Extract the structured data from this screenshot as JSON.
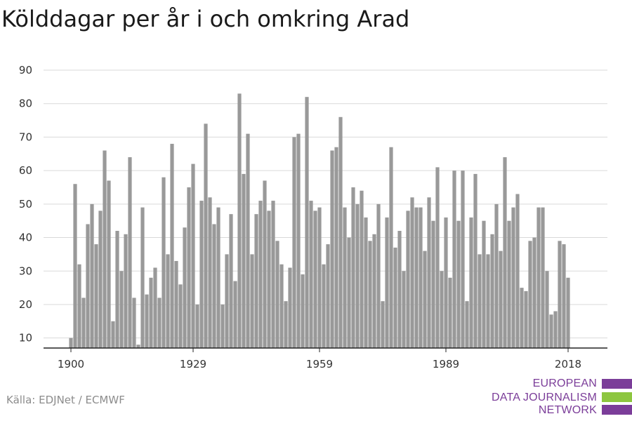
{
  "title": "Kölddagar per år i och omkring Arad",
  "source": "Källa: EDJNet / ECMWF",
  "logo": {
    "lines": [
      "EUROPEAN",
      "DATA JOURNALISM",
      "NETWORK"
    ],
    "colors": [
      "#7b3d99",
      "#8dc63f",
      "#7b3d99"
    ]
  },
  "chart_data": {
    "type": "bar",
    "title": "Kölddagar per år i och omkring Arad",
    "xlabel": "",
    "ylabel": "",
    "bar_color": "#999999",
    "grid": true,
    "ylim": [
      7,
      90
    ],
    "yticks": [
      10,
      20,
      30,
      40,
      50,
      60,
      70,
      80,
      90
    ],
    "xticks": [
      1900,
      1929,
      1959,
      1989,
      2018
    ],
    "x": [
      1900,
      1901,
      1902,
      1903,
      1904,
      1905,
      1906,
      1907,
      1908,
      1909,
      1910,
      1911,
      1912,
      1913,
      1914,
      1915,
      1916,
      1917,
      1918,
      1919,
      1920,
      1921,
      1922,
      1923,
      1924,
      1925,
      1926,
      1927,
      1928,
      1929,
      1930,
      1931,
      1932,
      1933,
      1934,
      1935,
      1936,
      1937,
      1938,
      1939,
      1940,
      1941,
      1942,
      1943,
      1944,
      1945,
      1946,
      1947,
      1948,
      1949,
      1950,
      1951,
      1952,
      1953,
      1954,
      1955,
      1956,
      1957,
      1958,
      1959,
      1960,
      1961,
      1962,
      1963,
      1964,
      1965,
      1966,
      1967,
      1968,
      1969,
      1970,
      1971,
      1972,
      1973,
      1974,
      1975,
      1976,
      1977,
      1978,
      1979,
      1980,
      1981,
      1982,
      1983,
      1984,
      1985,
      1986,
      1987,
      1988,
      1989,
      1990,
      1991,
      1992,
      1993,
      1994,
      1995,
      1996,
      1997,
      1998,
      1999,
      2000,
      2001,
      2002,
      2003,
      2004,
      2005,
      2006,
      2007,
      2008,
      2009,
      2010,
      2011,
      2012,
      2013,
      2014,
      2015,
      2016,
      2017,
      2018
    ],
    "values": [
      10,
      56,
      32,
      22,
      44,
      50,
      38,
      48,
      66,
      57,
      15,
      42,
      30,
      41,
      64,
      22,
      8,
      49,
      23,
      28,
      31,
      22,
      58,
      35,
      68,
      33,
      26,
      43,
      55,
      62,
      20,
      51,
      74,
      52,
      44,
      49,
      20,
      35,
      47,
      27,
      83,
      59,
      71,
      35,
      47,
      51,
      57,
      48,
      51,
      39,
      32,
      21,
      31,
      70,
      71,
      29,
      82,
      51,
      48,
      49,
      32,
      38,
      66,
      67,
      76,
      49,
      40,
      55,
      50,
      54,
      46,
      39,
      41,
      50,
      21,
      46,
      67,
      37,
      42,
      30,
      48,
      52,
      49,
      49,
      36,
      52,
      45,
      61,
      30,
      46,
      28,
      60,
      45,
      60,
      21,
      46,
      59,
      35,
      45,
      35,
      41,
      50,
      36,
      64,
      45,
      49,
      53,
      25,
      24,
      39,
      40,
      49,
      49,
      30,
      17,
      18,
      39,
      38,
      28
    ]
  }
}
